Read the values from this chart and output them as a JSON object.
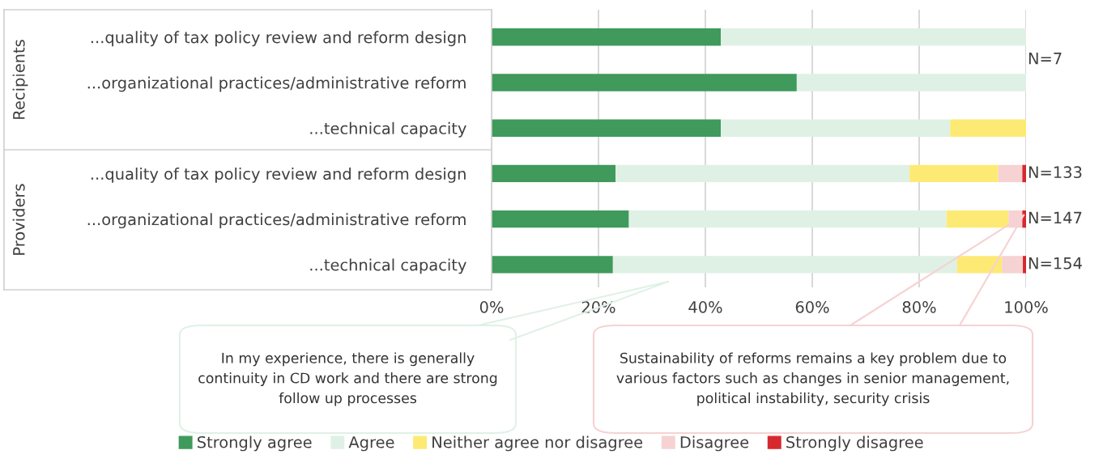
{
  "chart_data": {
    "type": "bar",
    "orientation": "horizontal",
    "stacked": true,
    "categories": [
      "...quality of tax policy review and reform design",
      "...organizational practices/administrative reform",
      "...technical capacity",
      "...quality of tax policy review and reform design",
      "...organizational practices/administrative reform",
      "...technical capacity"
    ],
    "series": [
      {
        "name": "Strongly agree",
        "color": "#3f9a5b",
        "values": [
          42.9,
          57.1,
          42.9,
          23.2,
          25.7,
          22.7
        ]
      },
      {
        "name": "Agree",
        "color": "#dff1e5",
        "values": [
          57.1,
          42.9,
          42.9,
          55.0,
          59.4,
          64.4
        ]
      },
      {
        "name": "Neither agree nor disagree",
        "color": "#fdea75",
        "values": [
          0,
          0,
          14.2,
          16.6,
          11.6,
          8.4
        ]
      },
      {
        "name": "Disagree",
        "color": "#f6d2d2",
        "values": [
          0,
          0,
          0,
          4.5,
          2.6,
          3.9
        ]
      },
      {
        "name": "Strongly disagree",
        "color": "#d7282e",
        "values": [
          0,
          0,
          0,
          0.7,
          0.7,
          0.6
        ]
      }
    ],
    "xlim": [
      0,
      100
    ],
    "xticks": [
      {
        "value": 0,
        "label": "0%"
      },
      {
        "value": 20,
        "label": "20%"
      },
      {
        "value": 40,
        "label": "40%"
      },
      {
        "value": 60,
        "label": "60%"
      },
      {
        "value": 80,
        "label": "80%"
      },
      {
        "value": 100,
        "label": "100%"
      }
    ],
    "grid": "x",
    "legend": "bottom",
    "annotations": [
      "N=7",
      "N=133",
      "N=147",
      "N=154",
      "Recipients",
      "Providers",
      "In my experience, there is generally continuity in CD work and there are strong follow up processes",
      "Sustainability of reforms remains a key problem due to various factors such as changes in senior management, political instability, security crisis"
    ]
  }
}
